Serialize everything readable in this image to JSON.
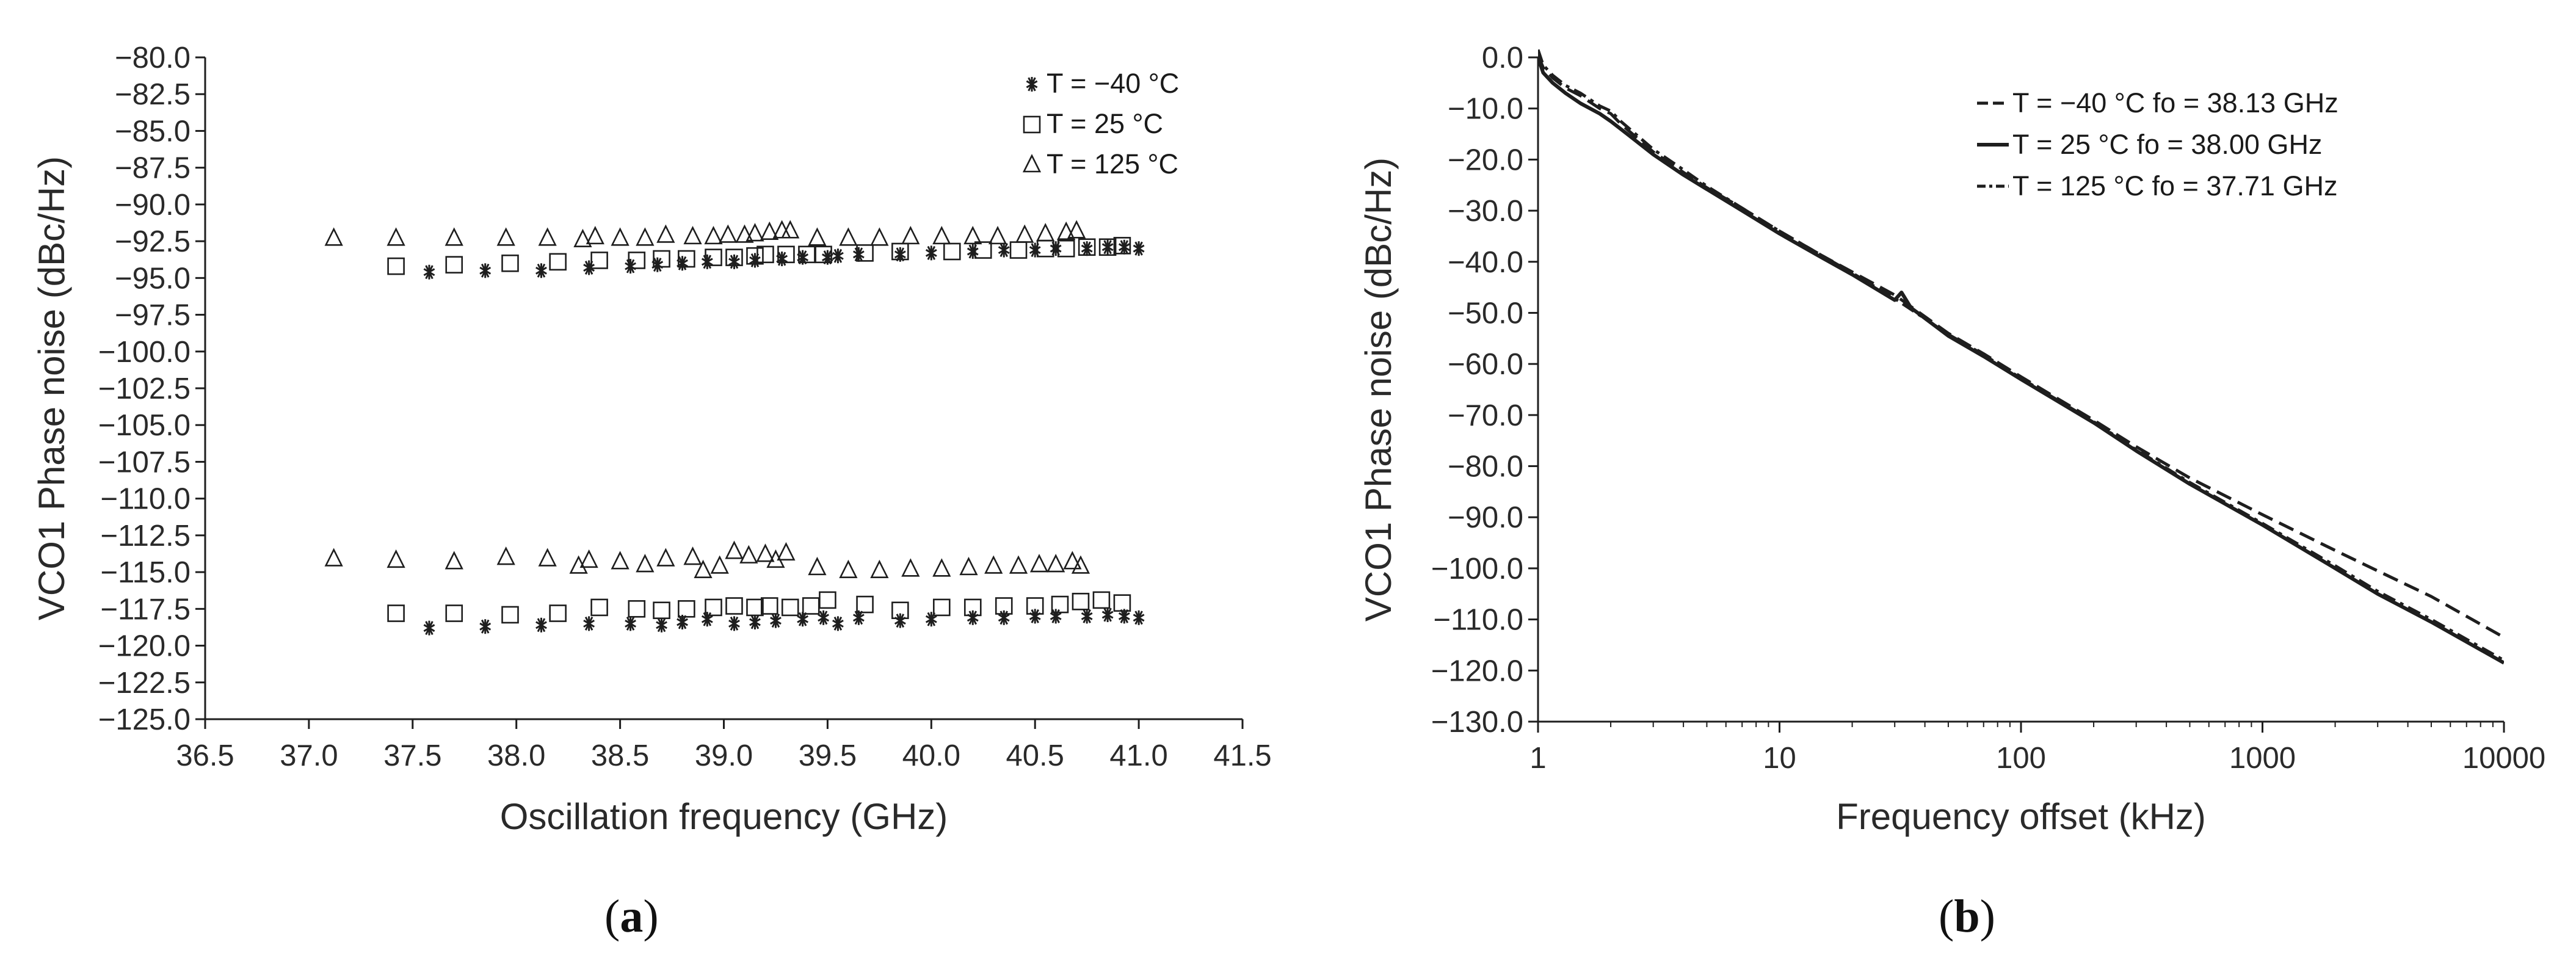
{
  "panel_labels": [
    "a",
    "b"
  ],
  "chart_data": [
    {
      "type": "scatter",
      "xlabel": "Oscillation frequency (GHz)",
      "ylabel": "VCO1 Phase noise (dBc/Hz)",
      "xlim": [
        36.5,
        41.5
      ],
      "ylim": [
        -125.0,
        -80.0
      ],
      "x_ticks": [
        "36.5",
        "37.0",
        "37.5",
        "38.0",
        "38.5",
        "39.0",
        "39.5",
        "40.0",
        "40.5",
        "41.0",
        "41.5"
      ],
      "y_ticks": [
        "-80.0",
        "-82.5",
        "-85.0",
        "-87.5",
        "-90.0",
        "-92.5",
        "-95.0",
        "-97.5",
        "-100.0",
        "-102.5",
        "-105.0",
        "-107.5",
        "-110.0",
        "-112.5",
        "-115.0",
        "-117.5",
        "-120.0",
        "-122.5",
        "-125.0"
      ],
      "grid": false,
      "legend_position": "top-right",
      "series": [
        {
          "name": "T = −40 °C",
          "marker": "asterisk",
          "points": [
            [
              37.58,
              -94.6
            ],
            [
              37.85,
              -94.5
            ],
            [
              38.12,
              -94.5
            ],
            [
              38.35,
              -94.3
            ],
            [
              38.55,
              -94.2
            ],
            [
              38.68,
              -94.1
            ],
            [
              38.8,
              -94.0
            ],
            [
              38.92,
              -93.9
            ],
            [
              39.05,
              -93.9
            ],
            [
              39.15,
              -93.8
            ],
            [
              39.28,
              -93.7
            ],
            [
              39.38,
              -93.6
            ],
            [
              39.5,
              -93.6
            ],
            [
              39.55,
              -93.5
            ],
            [
              39.65,
              -93.4
            ],
            [
              39.85,
              -93.4
            ],
            [
              40.0,
              -93.3
            ],
            [
              40.2,
              -93.2
            ],
            [
              40.35,
              -93.1
            ],
            [
              40.5,
              -93.1
            ],
            [
              40.6,
              -93.0
            ],
            [
              40.75,
              -93.0
            ],
            [
              40.85,
              -92.9
            ],
            [
              40.93,
              -92.9
            ],
            [
              41.0,
              -93.0
            ],
            [
              37.58,
              -118.8
            ],
            [
              37.85,
              -118.7
            ],
            [
              38.12,
              -118.6
            ],
            [
              38.35,
              -118.5
            ],
            [
              38.55,
              -118.5
            ],
            [
              38.7,
              -118.6
            ],
            [
              38.8,
              -118.4
            ],
            [
              38.92,
              -118.2
            ],
            [
              39.05,
              -118.5
            ],
            [
              39.15,
              -118.4
            ],
            [
              39.25,
              -118.3
            ],
            [
              39.38,
              -118.2
            ],
            [
              39.48,
              -118.1
            ],
            [
              39.55,
              -118.5
            ],
            [
              39.65,
              -118.1
            ],
            [
              39.85,
              -118.3
            ],
            [
              40.0,
              -118.2
            ],
            [
              40.2,
              -118.1
            ],
            [
              40.35,
              -118.1
            ],
            [
              40.5,
              -118.0
            ],
            [
              40.6,
              -118.0
            ],
            [
              40.75,
              -118.0
            ],
            [
              40.85,
              -117.9
            ],
            [
              40.93,
              -118.0
            ],
            [
              41.0,
              -118.1
            ]
          ]
        },
        {
          "name": "T = 25 °C",
          "marker": "square",
          "points": [
            [
              37.42,
              -94.2
            ],
            [
              37.7,
              -94.1
            ],
            [
              37.97,
              -94.0
            ],
            [
              38.2,
              -93.9
            ],
            [
              38.4,
              -93.8
            ],
            [
              38.58,
              -93.8
            ],
            [
              38.7,
              -93.7
            ],
            [
              38.82,
              -93.7
            ],
            [
              38.95,
              -93.6
            ],
            [
              39.05,
              -93.6
            ],
            [
              39.15,
              -93.5
            ],
            [
              39.2,
              -93.4
            ],
            [
              39.3,
              -93.4
            ],
            [
              39.4,
              -93.4
            ],
            [
              39.48,
              -93.4
            ],
            [
              39.68,
              -93.3
            ],
            [
              39.85,
              -93.2
            ],
            [
              40.1,
              -93.2
            ],
            [
              40.25,
              -93.1
            ],
            [
              40.42,
              -93.1
            ],
            [
              40.55,
              -93.0
            ],
            [
              40.65,
              -93.0
            ],
            [
              40.75,
              -92.9
            ],
            [
              40.85,
              -92.9
            ],
            [
              40.92,
              -92.8
            ],
            [
              37.42,
              -117.8
            ],
            [
              37.7,
              -117.8
            ],
            [
              37.97,
              -117.9
            ],
            [
              38.2,
              -117.8
            ],
            [
              38.4,
              -117.4
            ],
            [
              38.58,
              -117.5
            ],
            [
              38.7,
              -117.6
            ],
            [
              38.82,
              -117.5
            ],
            [
              38.95,
              -117.4
            ],
            [
              39.05,
              -117.3
            ],
            [
              39.15,
              -117.4
            ],
            [
              39.22,
              -117.3
            ],
            [
              39.32,
              -117.4
            ],
            [
              39.42,
              -117.3
            ],
            [
              39.5,
              -116.9
            ],
            [
              39.68,
              -117.2
            ],
            [
              39.85,
              -117.6
            ],
            [
              40.05,
              -117.4
            ],
            [
              40.2,
              -117.4
            ],
            [
              40.35,
              -117.3
            ],
            [
              40.5,
              -117.3
            ],
            [
              40.62,
              -117.2
            ],
            [
              40.72,
              -117.0
            ],
            [
              40.82,
              -116.9
            ],
            [
              40.92,
              -117.1
            ]
          ]
        },
        {
          "name": "T = 125 °C",
          "marker": "triangle",
          "points": [
            [
              37.12,
              -92.3
            ],
            [
              37.42,
              -92.3
            ],
            [
              37.7,
              -92.3
            ],
            [
              37.95,
              -92.3
            ],
            [
              38.15,
              -92.3
            ],
            [
              38.32,
              -92.4
            ],
            [
              38.38,
              -92.2
            ],
            [
              38.5,
              -92.3
            ],
            [
              38.62,
              -92.3
            ],
            [
              38.72,
              -92.1
            ],
            [
              38.85,
              -92.2
            ],
            [
              38.95,
              -92.2
            ],
            [
              39.02,
              -92.1
            ],
            [
              39.1,
              -92.1
            ],
            [
              39.15,
              -92.0
            ],
            [
              39.22,
              -91.9
            ],
            [
              39.28,
              -91.8
            ],
            [
              39.32,
              -91.8
            ],
            [
              39.45,
              -92.3
            ],
            [
              39.6,
              -92.3
            ],
            [
              39.75,
              -92.3
            ],
            [
              39.9,
              -92.2
            ],
            [
              40.05,
              -92.2
            ],
            [
              40.2,
              -92.2
            ],
            [
              40.32,
              -92.2
            ],
            [
              40.45,
              -92.1
            ],
            [
              40.55,
              -92.0
            ],
            [
              40.65,
              -91.9
            ],
            [
              40.7,
              -91.8
            ],
            [
              37.12,
              -114.1
            ],
            [
              37.42,
              -114.2
            ],
            [
              37.7,
              -114.3
            ],
            [
              37.95,
              -114.0
            ],
            [
              38.15,
              -114.1
            ],
            [
              38.3,
              -114.6
            ],
            [
              38.35,
              -114.2
            ],
            [
              38.5,
              -114.3
            ],
            [
              38.62,
              -114.5
            ],
            [
              38.72,
              -114.1
            ],
            [
              38.85,
              -114.0
            ],
            [
              38.9,
              -114.9
            ],
            [
              38.98,
              -114.6
            ],
            [
              39.05,
              -113.6
            ],
            [
              39.12,
              -113.9
            ],
            [
              39.2,
              -113.8
            ],
            [
              39.25,
              -114.2
            ],
            [
              39.3,
              -113.7
            ],
            [
              39.45,
              -114.7
            ],
            [
              39.6,
              -114.9
            ],
            [
              39.75,
              -114.9
            ],
            [
              39.9,
              -114.8
            ],
            [
              40.05,
              -114.8
            ],
            [
              40.18,
              -114.7
            ],
            [
              40.3,
              -114.6
            ],
            [
              40.42,
              -114.6
            ],
            [
              40.52,
              -114.5
            ],
            [
              40.6,
              -114.5
            ],
            [
              40.68,
              -114.3
            ],
            [
              40.72,
              -114.6
            ]
          ]
        }
      ]
    },
    {
      "type": "line",
      "x_scale": "log",
      "xlabel": "Frequency offset (kHz)",
      "ylabel": "VCO1 Phase noise (dBc/Hz)",
      "xlim": [
        1,
        10000
      ],
      "ylim": [
        -130.0,
        0.0
      ],
      "x_ticks": [
        "1",
        "10",
        "100",
        "1000",
        "10000"
      ],
      "y_ticks": [
        "0.0",
        "-10.0",
        "-20.0",
        "-30.0",
        "-40.0",
        "-50.0",
        "-60.0",
        "-70.0",
        "-80.0",
        "-90.0",
        "-100.0",
        "-110.0",
        "-120.0",
        "-130.0"
      ],
      "grid": false,
      "legend_position": "top-right",
      "series": [
        {
          "name": "T = −40 °C fo = 38.13 GHz",
          "style": "dashed",
          "x": [
            1,
            1.05,
            1.15,
            1.3,
            1.5,
            1.8,
            2,
            2.2,
            3,
            4,
            5,
            7,
            10,
            15,
            20,
            30,
            50,
            70,
            100,
            200,
            300,
            500,
            1000,
            2000,
            3000,
            5000,
            10000
          ],
          "y": [
            0.5,
            -2,
            -4,
            -6,
            -7.5,
            -10,
            -11,
            -13,
            -18.5,
            -22.5,
            -25.5,
            -29.5,
            -34,
            -38.8,
            -42,
            -46.5,
            -54,
            -58,
            -62.5,
            -71,
            -76.2,
            -82.3,
            -89.5,
            -96.5,
            -100.5,
            -105.5,
            -113.5
          ]
        },
        {
          "name": "T = 25 °C fo = 38.00 GHz",
          "style": "solid",
          "x": [
            1,
            1.05,
            1.15,
            1.3,
            1.5,
            1.8,
            2,
            2.2,
            3,
            4,
            5,
            7,
            10,
            15,
            20,
            30,
            32,
            35,
            50,
            70,
            100,
            200,
            300,
            500,
            1000,
            2000,
            3000,
            5000,
            10000
          ],
          "y": [
            0,
            -3,
            -5,
            -7,
            -9,
            -11,
            -12.5,
            -14,
            -19,
            -23,
            -25.8,
            -30,
            -34.5,
            -39.2,
            -42.5,
            -47.5,
            -46,
            -49,
            -54.5,
            -58.5,
            -63,
            -71.5,
            -77,
            -83.5,
            -91.5,
            -100,
            -105,
            -110.5,
            -118.5
          ]
        },
        {
          "name": "T = 125 °C fo = 37.71 GHz",
          "style": "dash-dot",
          "x": [
            1,
            1.05,
            1.15,
            1.3,
            1.5,
            1.8,
            2,
            2.2,
            3,
            4,
            5,
            7,
            10,
            15,
            20,
            30,
            50,
            70,
            100,
            200,
            300,
            500,
            1000,
            2000,
            3000,
            5000,
            10000
          ],
          "y": [
            1.5,
            -1.5,
            -3.5,
            -5.5,
            -7,
            -9.5,
            -10.5,
            -12.5,
            -18,
            -22,
            -25.2,
            -29.5,
            -34,
            -38.8,
            -42.2,
            -47.2,
            -54.2,
            -58.2,
            -62.8,
            -71.3,
            -76.8,
            -83.2,
            -91.2,
            -99.5,
            -104.5,
            -110,
            -118
          ]
        }
      ]
    }
  ]
}
